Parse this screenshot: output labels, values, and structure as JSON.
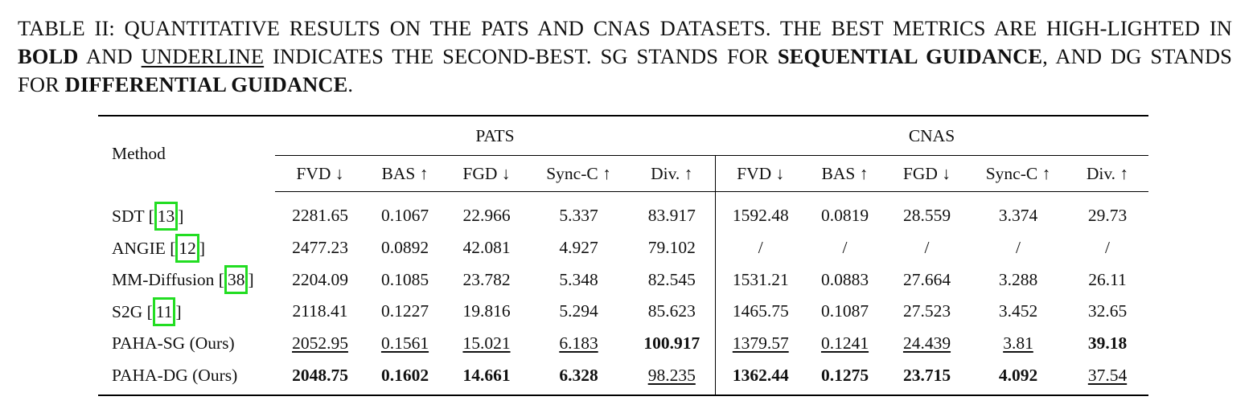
{
  "caption": {
    "p1": "TABLE II: QUANTITATIVE RESULTS ON THE PATS AND CNAS DATASETS. THE BEST METRICS ARE HIGH-LIGHTED IN ",
    "bold_word": "BOLD",
    "p2": " AND ",
    "underline_word": "UNDERLINE",
    "p3": " INDICATES THE SECOND-BEST. SG STANDS FOR ",
    "sg_term": "SEQUENTIAL GUIDANCE",
    "p4": ", AND DG STANDS FOR ",
    "dg_term": "DIFFERENTIAL GUIDANCE",
    "p5": "."
  },
  "table": {
    "method_header": "Method",
    "group_pats": "PATS",
    "group_cnas": "CNAS",
    "metrics": [
      "FVD ↓",
      "BAS ↑",
      "FGD ↓",
      "Sync-C ↑",
      "Div. ↑",
      "FVD ↓",
      "BAS ↑",
      "FGD ↓",
      "Sync-C ↑",
      "Div. ↑"
    ],
    "rows": [
      {
        "method": "SDT [",
        "cite": "13",
        "close": "]",
        "cells": [
          {
            "v": "2281.65"
          },
          {
            "v": "0.1067"
          },
          {
            "v": "22.966"
          },
          {
            "v": "5.337"
          },
          {
            "v": "83.917"
          },
          {
            "v": "1592.48"
          },
          {
            "v": "0.0819"
          },
          {
            "v": "28.559"
          },
          {
            "v": "3.374"
          },
          {
            "v": "29.73"
          }
        ]
      },
      {
        "method": "ANGIE [",
        "cite": "12",
        "close": "]",
        "cells": [
          {
            "v": "2477.23"
          },
          {
            "v": "0.0892"
          },
          {
            "v": "42.081"
          },
          {
            "v": "4.927"
          },
          {
            "v": "79.102"
          },
          {
            "v": "/"
          },
          {
            "v": "/"
          },
          {
            "v": "/"
          },
          {
            "v": "/"
          },
          {
            "v": "/"
          }
        ]
      },
      {
        "method": "MM-Diffusion [",
        "cite": "38",
        "close": "]",
        "cells": [
          {
            "v": "2204.09"
          },
          {
            "v": "0.1085"
          },
          {
            "v": "23.782"
          },
          {
            "v": "5.348"
          },
          {
            "v": "82.545"
          },
          {
            "v": "1531.21"
          },
          {
            "v": "0.0883"
          },
          {
            "v": "27.664"
          },
          {
            "v": "3.288"
          },
          {
            "v": "26.11"
          }
        ]
      },
      {
        "method": "S2G [",
        "cite": "11",
        "close": "]",
        "cells": [
          {
            "v": "2118.41"
          },
          {
            "v": "0.1227"
          },
          {
            "v": "19.816"
          },
          {
            "v": "5.294"
          },
          {
            "v": "85.623"
          },
          {
            "v": "1465.75"
          },
          {
            "v": "0.1087"
          },
          {
            "v": "27.523"
          },
          {
            "v": "3.452"
          },
          {
            "v": "32.65"
          }
        ]
      },
      {
        "method": "PAHA-SG (Ours)",
        "cite": "",
        "close": "",
        "cells": [
          {
            "v": "2052.95",
            "s": "u"
          },
          {
            "v": "0.1561",
            "s": "u"
          },
          {
            "v": "15.021",
            "s": "u"
          },
          {
            "v": "6.183",
            "s": "u"
          },
          {
            "v": "100.917",
            "s": "b"
          },
          {
            "v": "1379.57",
            "s": "u"
          },
          {
            "v": "0.1241",
            "s": "u"
          },
          {
            "v": "24.439",
            "s": "u"
          },
          {
            "v": "3.81",
            "s": "u"
          },
          {
            "v": "39.18",
            "s": "b"
          }
        ]
      },
      {
        "method": "PAHA-DG (Ours)",
        "cite": "",
        "close": "",
        "cells": [
          {
            "v": "2048.75",
            "s": "b"
          },
          {
            "v": "0.1602",
            "s": "b"
          },
          {
            "v": "14.661",
            "s": "b"
          },
          {
            "v": "6.328",
            "s": "b"
          },
          {
            "v": "98.235",
            "s": "u"
          },
          {
            "v": "1362.44",
            "s": "b"
          },
          {
            "v": "0.1275",
            "s": "b"
          },
          {
            "v": "23.715",
            "s": "b"
          },
          {
            "v": "4.092",
            "s": "b"
          },
          {
            "v": "37.54",
            "s": "u"
          }
        ]
      }
    ]
  },
  "colors": {
    "citation_highlight": "#22dd22"
  }
}
